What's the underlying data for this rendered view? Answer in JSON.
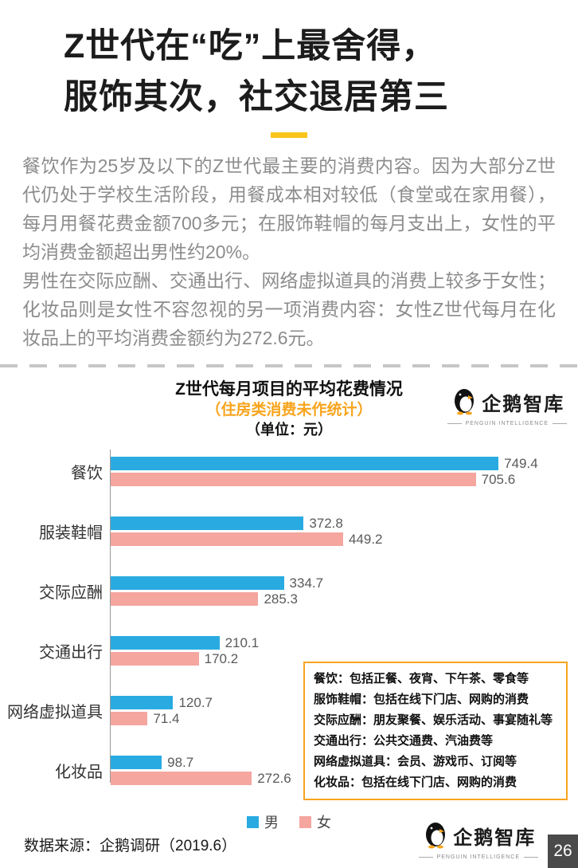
{
  "header": {
    "title_line1": "Z世代在“吃”上最舍得，",
    "title_line2": "服饰其次，社交退居第三"
  },
  "intro": {
    "paragraph1": "餐饮作为25岁及以下的Z世代最主要的消费内容。因为大部分Z世代仍处于学校生活阶段，用餐成本相对较低（食堂或在家用餐），每月用餐花费金额700多元；在服饰鞋帽的每月支出上，女性的平均消费金额超出男性约20%。",
    "paragraph2": "男性在交际应酬、交通出行、网络虚拟道具的消费上较多于女性；化妆品则是女性不容忽视的另一项消费内容：女性Z世代每月在化妆品上的平均消费金额约为272.6元。"
  },
  "chart": {
    "title": "Z世代每月项目的平均花费情况",
    "subtitle": "（住房类消费未作统计）",
    "unit_label": "（单位：元）"
  },
  "chart_data": {
    "type": "bar",
    "orientation": "horizontal",
    "title": "Z世代每月项目的平均花费情况",
    "subtitle": "（住房类消费未作统计）",
    "unit": "元",
    "categories": [
      "餐饮",
      "服装鞋帽",
      "交际应酬",
      "交通出行",
      "网络虚拟道具",
      "化妆品"
    ],
    "series": [
      {
        "name": "男",
        "color": "#29abe2",
        "values": [
          749.4,
          372.8,
          334.7,
          210.1,
          120.7,
          98.7
        ]
      },
      {
        "name": "女",
        "color": "#f4a69f",
        "values": [
          705.6,
          449.2,
          285.3,
          170.2,
          71.4,
          272.6
        ]
      }
    ],
    "xlim": [
      0,
      800
    ],
    "grid": false,
    "legend_position": "bottom"
  },
  "notes": {
    "border_color": "#f8a41d",
    "lines": [
      "餐饮：包括正餐、夜宵、下午茶、零食等",
      "服饰鞋帽：包括在线下门店、网购的消费",
      "交际应酬：朋友聚餐、娱乐活动、事宴随礼等",
      "交通出行：公共交通费、汽油费等",
      "网络虚拟道具：会员、游戏币、订阅等",
      "化妆品：包括在线下门店、网购的消费"
    ]
  },
  "brand": {
    "name": "企鹅智库",
    "tagline": "PENGUIN INTELLIGENCE"
  },
  "footer": {
    "source": "数据来源：企鹅调研（2019.6）",
    "page_number": "26"
  },
  "colors": {
    "accent_yellow": "#f9c51a",
    "accent_orange": "#f8a41d",
    "male_blue": "#29abe2",
    "female_pink": "#f4a69f",
    "body_gray": "#8c8c8c"
  }
}
